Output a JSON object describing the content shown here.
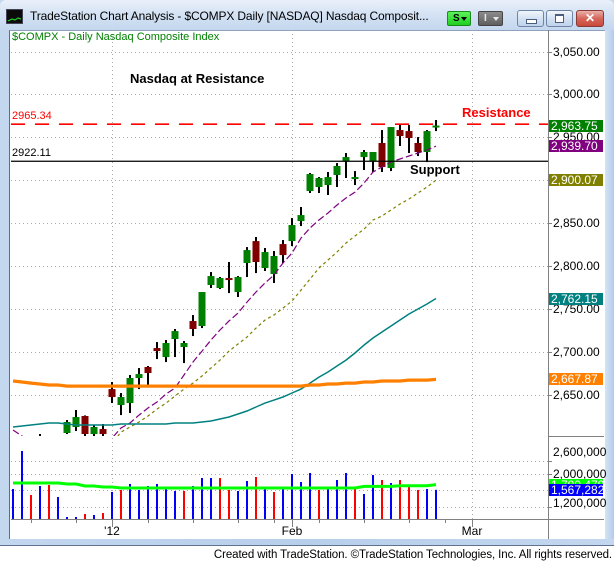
{
  "window": {
    "title": "TradeStation Chart Analysis - $COMPX Daily [NASDAQ] Nasdaq Composit...",
    "toolbar": {
      "s_label": "S",
      "i_label": "I"
    },
    "close_glyph": "✕"
  },
  "chart": {
    "symbol_label": "$COMPX - Daily  Nasdaq Composite Index",
    "annotation_title": "Nasdaq at Resistance",
    "resistance_text": "Resistance",
    "support_text": "Support",
    "resistance_value_label": "2965.34",
    "support_value_label": "2922.11"
  },
  "footer": {
    "text": "Created with TradeStation. ©TradeStation Technologies, Inc. All rights reserved."
  },
  "chart_data": {
    "type": "candlestick",
    "title": "Nasdaq at Resistance",
    "subtitle": "$COMPX - Daily  Nasdaq Composite Index",
    "symbol": "$COMPX",
    "interval": "Daily",
    "xlabel": "",
    "ylabel": "",
    "ylim": [
      2601.9,
      3075.1
    ],
    "grid": true,
    "grid_levels": [
      3050,
      3000,
      2950,
      2900,
      2850,
      2800,
      2750,
      2700,
      2650
    ],
    "y_ticks": [
      {
        "value": 3050,
        "label": "3,050.00"
      },
      {
        "value": 3000,
        "label": "3,000.00"
      },
      {
        "value": 2950,
        "label": "2,950.00"
      },
      {
        "value": 2850,
        "label": "2,850.00"
      },
      {
        "value": 2800,
        "label": "2,800.00"
      },
      {
        "value": 2750,
        "label": "2,750.00"
      },
      {
        "value": 2700,
        "label": "2,700.00"
      },
      {
        "value": 2650,
        "label": "2,650.00"
      }
    ],
    "x_labels": [
      {
        "index": 11,
        "label": "'12"
      },
      {
        "index": 31,
        "label": "Feb"
      },
      {
        "index": 51,
        "label": "Mar"
      }
    ],
    "x_ticks": [
      2,
      7,
      11,
      15,
      20,
      25,
      29,
      31,
      34,
      39,
      44,
      48,
      51
    ],
    "x_major_ticks": [
      11,
      31,
      51
    ],
    "colors": {
      "up": "#008000",
      "down": "#800000",
      "wick": "#000000",
      "vol_up": "#0000ff",
      "vol_down": "#ff0000"
    },
    "ohlc": {
      "open": [
        2588,
        2595,
        2582,
        2574,
        2598,
        2588,
        2605.4,
        2612.4,
        2625.2,
        2604.2,
        2610.0,
        2656.6,
        2638.0,
        2640.3,
        2669.5,
        2682.3,
        2704.4,
        2693.9,
        2714.9,
        2705.6,
        2735.9,
        2730.1,
        2777.9,
        2774.4,
        2786.0,
        2769.7,
        2803.5,
        2829.1,
        2797.7,
        2790.7,
        2825.6,
        2829.1,
        2852.4,
        2887.4,
        2892.1,
        2894.4,
        2906.1,
        2922.4,
        2901.4,
        2927.0,
        2922.4,
        2943.4,
        2914.2,
        2958.5,
        2957.3,
        2943.4,
        2932.9,
        2962.0
      ],
      "high": [
        2598,
        2600,
        2590,
        2604.2,
        2601,
        2600,
        2620.5,
        2632.2,
        2625.9,
        2614.7,
        2615.9,
        2664.8,
        2652.0,
        2673.0,
        2681.1,
        2683.5,
        2711.4,
        2713.8,
        2726.6,
        2712.6,
        2742.9,
        2769.7,
        2793.0,
        2787.2,
        2804.7,
        2788.3,
        2822.1,
        2833.8,
        2821.0,
        2817.5,
        2830.3,
        2855.9,
        2868.8,
        2908.4,
        2903.7,
        2909.6,
        2920.0,
        2931.7,
        2910.7,
        2935.2,
        2932.9,
        2958.5,
        2962.0,
        2964.3,
        2964.3,
        2950.3,
        2958.5,
        2970.2
      ],
      "low": [
        2580,
        2578,
        2570,
        2572,
        2585,
        2584,
        2604.2,
        2607.7,
        2601.9,
        2601.0,
        2601.0,
        2640.3,
        2626.3,
        2628.7,
        2656.6,
        2660.1,
        2691.6,
        2688.1,
        2693.9,
        2686.9,
        2718.4,
        2727.7,
        2774.4,
        2773.2,
        2768.5,
        2763.9,
        2787.2,
        2791.8,
        2794.2,
        2780.2,
        2803.5,
        2823.3,
        2846.6,
        2885.1,
        2885.1,
        2882.8,
        2892.1,
        2902.6,
        2894.4,
        2911.9,
        2909.6,
        2909.6,
        2910.7,
        2939.9,
        2931.7,
        2928.2,
        2921.2,
        2957.3
      ],
      "close": [
        2595,
        2582,
        2574,
        2598,
        2588,
        2596,
        2618.2,
        2624.0,
        2604.2,
        2612.4,
        2604.2,
        2647.3,
        2647.3,
        2669.5,
        2674.1,
        2675.3,
        2700.9,
        2710.3,
        2724.2,
        2710.3,
        2726.6,
        2769.7,
        2788.3,
        2786.0,
        2783.7,
        2787.2,
        2818.6,
        2804.7,
        2816.3,
        2811.7,
        2812.8,
        2847.8,
        2859.4,
        2907.2,
        2902.6,
        2903.7,
        2916.6,
        2927.0,
        2903.7,
        2932.9,
        2932.9,
        2915.4,
        2962.0,
        2951.5,
        2949.2,
        2932.9,
        2957.3,
        2963.75
      ]
    },
    "last_close": 2963.75,
    "moving_averages": [
      {
        "name": "ma-purple",
        "color": "#800080",
        "width": 1.2,
        "dash": "7 3",
        "last_label": "2,939.70",
        "values": [
          2608.9,
          2601.9,
          2591.4,
          2583.2,
          2576.2,
          2571.6,
          2568.1,
          2571.6,
          2576.2,
          2583.2,
          2591.4,
          2599.5,
          2611.2,
          2617.0,
          2626.3,
          2634.5,
          2641.5,
          2650.8,
          2657.8,
          2673.0,
          2688.1,
          2700.9,
          2713.8,
          2725.4,
          2735.9,
          2745.2,
          2758.0,
          2769.7,
          2780.2,
          2789.5,
          2803.5,
          2815.2,
          2832.6,
          2844.3,
          2853.6,
          2861.8,
          2871.1,
          2879.3,
          2886.2,
          2896.7,
          2909.6,
          2915.4,
          2921.2,
          2924.7,
          2928.2,
          2931.7,
          2935.2,
          2939.7
        ]
      },
      {
        "name": "ma-olive",
        "color": "#808000",
        "width": 1.2,
        "dash": "3 3",
        "last_label": "2,900.07",
        "values": [
          2570,
          2568,
          2566,
          2565,
          2565,
          2566,
          2568,
          2571,
          2575,
          2580,
          2586,
          2593,
          2606.5,
          2612.4,
          2618.2,
          2625.2,
          2633.3,
          2640.3,
          2648.5,
          2656.6,
          2663.6,
          2671.8,
          2681.1,
          2690.4,
          2700.9,
          2709.1,
          2717.2,
          2727.7,
          2737.1,
          2742.9,
          2751.0,
          2759.2,
          2772.0,
          2784.8,
          2797.7,
          2807.0,
          2816.3,
          2826.8,
          2835.0,
          2843.1,
          2853.6,
          2858.3,
          2865.3,
          2872.3,
          2878.1,
          2885.1,
          2892.1,
          2900.07
        ]
      },
      {
        "name": "ma-teal",
        "color": "#008080",
        "width": 1.5,
        "dash": "",
        "last_label": "2,762.15",
        "values": [
          2612.4,
          2613.5,
          2614.7,
          2615.9,
          2617.0,
          2617.0,
          2615.9,
          2614.7,
          2614.7,
          2614.7,
          2614.7,
          2614.7,
          2615.9,
          2615.9,
          2615.9,
          2615.9,
          2615.9,
          2615.9,
          2617.0,
          2617.0,
          2617.0,
          2618.2,
          2619.4,
          2621.7,
          2624.0,
          2627.5,
          2631.0,
          2635.7,
          2640.3,
          2643.8,
          2647.3,
          2652.0,
          2656.6,
          2663.6,
          2670.6,
          2676.5,
          2683.5,
          2690.4,
          2698.6,
          2707.9,
          2716.1,
          2723.1,
          2730.1,
          2737.1,
          2744.1,
          2749.9,
          2755.7,
          2762.15
        ]
      },
      {
        "name": "ma-orange",
        "color": "#ff8000",
        "width": 3.2,
        "dash": "",
        "last_label": "2,667.87",
        "values": [
          2666.0,
          2664.8,
          2663.6,
          2662.5,
          2661.3,
          2661.3,
          2660.1,
          2660.1,
          2660.1,
          2660.1,
          2660.1,
          2660.1,
          2660.1,
          2660.1,
          2660.1,
          2660.1,
          2660.1,
          2660.1,
          2660.1,
          2660.1,
          2660.1,
          2660.1,
          2660.1,
          2660.1,
          2660.1,
          2660.1,
          2660.1,
          2660.1,
          2660.1,
          2660.1,
          2660.1,
          2660.1,
          2660.1,
          2661.3,
          2661.3,
          2662.5,
          2662.5,
          2663.6,
          2663.6,
          2664.8,
          2664.8,
          2666.0,
          2666.0,
          2666.0,
          2667.1,
          2667.1,
          2667.1,
          2667.87
        ]
      }
    ],
    "last_value_labels": [
      {
        "name": "last-price-label",
        "value": 2963.75,
        "label": "2,963.75",
        "color": "#008000"
      },
      {
        "name": "ma-purple-value-label",
        "value": 2939.7,
        "label": "2,939.70",
        "color": "#800080"
      },
      {
        "name": "ma-olive-value-label",
        "value": 2900.07,
        "label": "2,900.07",
        "color": "#808000"
      },
      {
        "name": "ma-teal-value-label",
        "value": 2762.15,
        "label": "2,762.15",
        "color": "#008080"
      },
      {
        "name": "ma-orange-value-label",
        "value": 2667.87,
        "label": "2,667.87",
        "color": "#ff8000"
      }
    ],
    "annotations": [
      {
        "type": "hline",
        "name": "resistance",
        "value": 2965.34,
        "label": "2965.34",
        "text": "Resistance",
        "color": "#ff0000",
        "style": "dashed"
      },
      {
        "type": "hline",
        "name": "support",
        "value": 2922.11,
        "label": "2922.11",
        "text": "Support",
        "color": "#000000",
        "style": "solid"
      }
    ],
    "volume": {
      "ylim": [
        744000,
        2928000
      ],
      "grid_levels": [
        2350000,
        2000000,
        1560000,
        1100000
      ],
      "ticks": [
        {
          "value": 2600000,
          "label": "2,600,000"
        },
        {
          "value": 2000000,
          "label": "2,000,000"
        },
        {
          "value": 1200000,
          "label": "1,200,000"
        }
      ],
      "values": [
        1590300,
        2627700,
        1426500,
        1672200,
        1699500,
        1371900,
        825900,
        825900,
        907800,
        880500,
        935100,
        1508400,
        1563000,
        1726800,
        1563000,
        1672200,
        1726800,
        1590300,
        1535700,
        1535700,
        1672200,
        1890600,
        1890600,
        1890600,
        1563000,
        1535700,
        1808700,
        1917900,
        1617600,
        1508400,
        1644900,
        1999800,
        1781400,
        2027100,
        1563000,
        1644900,
        1836000,
        2027100,
        1617600,
        1453800,
        1972500,
        1836000,
        1754100,
        1836000,
        1699500,
        1563000,
        1590300,
        1567282
      ],
      "direction": [
        "u",
        "u",
        "d",
        "u",
        "d",
        "u",
        "u",
        "u",
        "d",
        "u",
        "d",
        "u",
        "d",
        "u",
        "u",
        "u",
        "u",
        "u",
        "u",
        "d",
        "u",
        "u",
        "u",
        "d",
        "d",
        "u",
        "u",
        "d",
        "u",
        "d",
        "u",
        "u",
        "u",
        "u",
        "d",
        "u",
        "u",
        "u",
        "d",
        "u",
        "u",
        "d",
        "u",
        "d",
        "d",
        "d",
        "u",
        "u"
      ],
      "ma": {
        "color": "#00ff00",
        "width": 3,
        "values": [
          1754100,
          1754100,
          1754100,
          1754100,
          1754100,
          1754100,
          1726800,
          1726800,
          1672200,
          1672200,
          1644900,
          1644900,
          1617600,
          1617600,
          1617600,
          1617600,
          1617600,
          1617600,
          1617600,
          1617600,
          1617600,
          1617600,
          1617600,
          1617600,
          1617600,
          1617600,
          1617600,
          1617600,
          1617600,
          1617600,
          1617600,
          1617600,
          1617600,
          1617600,
          1617600,
          1617600,
          1617600,
          1617600,
          1617600,
          1660000,
          1660000,
          1660000,
          1660000,
          1680000,
          1680000,
          1680000,
          1680000,
          1709479
        ]
      },
      "last_value_labels": [
        {
          "name": "volume-ma-value-label",
          "value": 1709479,
          "label": "1,709,479",
          "color": "#00ff00"
        },
        {
          "name": "volume-last-value-label",
          "value": 1567282,
          "label": "1,567,282",
          "color": "#0000ff"
        }
      ]
    }
  }
}
